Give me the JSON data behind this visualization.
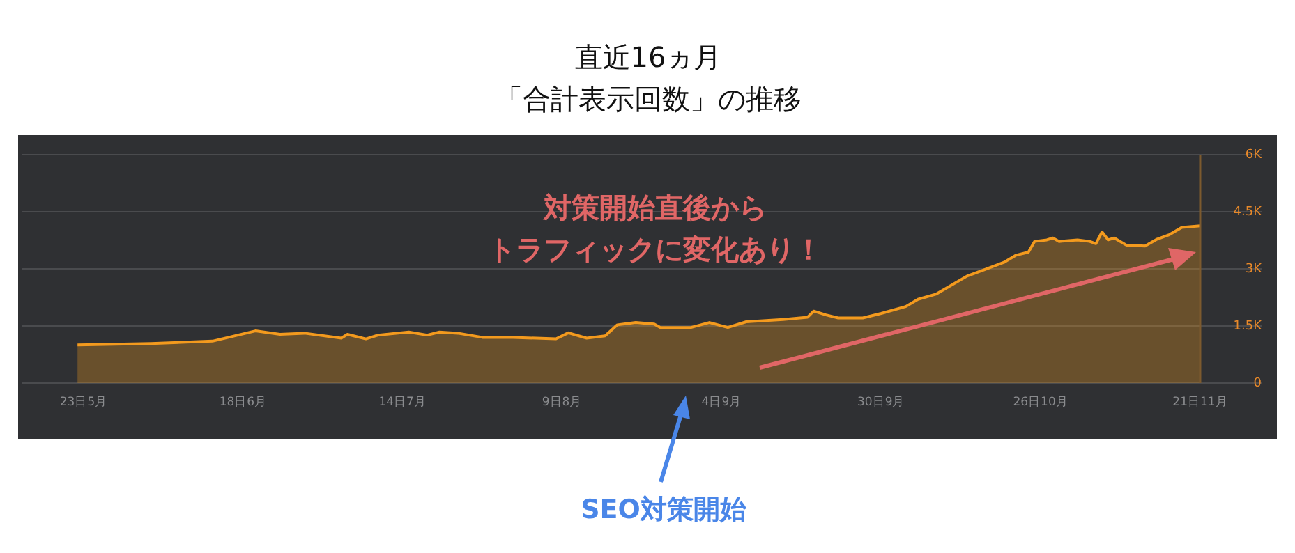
{
  "chart_data": {
    "type": "area",
    "title": "直近16ヵ月",
    "subtitle": "「合計表示回数」の推移",
    "x": [
      "--05-22",
      "--06-03",
      "--06-13",
      "--06-20",
      "--06-24",
      "--06-28",
      "--07-04",
      "--07-05",
      "--07-08",
      "--07-10",
      "--07-15",
      "--07-18",
      "--07-20",
      "--07-23",
      "--07-27",
      "--08-01",
      "--08-08",
      "--08-10",
      "--08-13",
      "--08-16",
      "--08-18",
      "--08-21",
      "--08-24",
      "--08-25",
      "--08-30",
      "--09-02",
      "--09-05",
      "--09-08",
      "--09-14",
      "--09-18",
      "--09-19",
      "--09-21",
      "--09-23",
      "--09-27",
      "--09-30",
      "--10-04",
      "--10-06",
      "--10-09",
      "--10-14",
      "--10-17",
      "--10-20",
      "--10-22",
      "--10-24",
      "--10-25",
      "--10-27",
      "--10-28",
      "--10-29",
      "--11-01",
      "--11-03",
      "--11-04",
      "--11-05",
      "--11-06",
      "--11-07",
      "--11-09",
      "--11-12",
      "--11-14",
      "--11-16",
      "--11-18",
      "--11-21"
    ],
    "series": [
      {
        "color": "#f39a1e",
        "values": [
          1000,
          1040,
          1100,
          1370,
          1280,
          1310,
          1180,
          1280,
          1160,
          1260,
          1340,
          1260,
          1340,
          1310,
          1200,
          1200,
          1160,
          1320,
          1180,
          1240,
          1530,
          1590,
          1550,
          1460,
          1460,
          1590,
          1460,
          1610,
          1670,
          1730,
          1890,
          1790,
          1710,
          1710,
          1830,
          2010,
          2200,
          2340,
          2810,
          2990,
          3170,
          3360,
          3440,
          3720,
          3760,
          3810,
          3720,
          3760,
          3720,
          3660,
          3970,
          3760,
          3810,
          3620,
          3600,
          3780,
          3900,
          4090,
          4130
        ]
      }
    ],
    "xlim": [
      "--05-13",
      "--12-01"
    ],
    "xticks": [
      {
        "value": "--05-23",
        "label": "23日5月"
      },
      {
        "value": "--06-18",
        "label": "18日6月"
      },
      {
        "value": "--07-14",
        "label": "14日7月"
      },
      {
        "value": "--08-09",
        "label": "9日8月"
      },
      {
        "value": "--09-04",
        "label": "4日9月"
      },
      {
        "value": "--09-30",
        "label": "30日9月"
      },
      {
        "value": "--10-26",
        "label": "26日10月"
      },
      {
        "value": "--11-21",
        "label": "21日11月"
      }
    ],
    "ylim": [
      0,
      6000
    ],
    "yticks": [
      {
        "value": 0,
        "label": "0"
      },
      {
        "value": 1500,
        "label": "1.5K"
      },
      {
        "value": 3000,
        "label": "3K"
      },
      {
        "value": 4500,
        "label": "4.5K"
      },
      {
        "value": 6000,
        "label": "6K"
      }
    ],
    "grid": "y",
    "ref_lines": [
      {
        "axis": "x",
        "value": "--11-21",
        "color": "#7d5a2e"
      }
    ],
    "annotations": [
      "対策開始直後から",
      "トラフィックに変化あり！",
      "SEO対策開始"
    ]
  }
}
